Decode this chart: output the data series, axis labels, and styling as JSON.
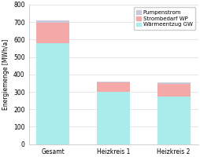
{
  "categories": [
    "Gesamt",
    "Heizkreis 1",
    "Heizkreis 2"
  ],
  "warmeentzug_gw": [
    580,
    300,
    275
  ],
  "strombedarf_wp": [
    115,
    52,
    72
  ],
  "pumpenstrom": [
    15,
    8,
    8
  ],
  "color_warmeentzug": "#aaecec",
  "color_strombedarf": "#f4a8a8",
  "color_pumpenstrom": "#c8c8d8",
  "ylabel": "Energiemenge [MWh/a]",
  "ylim": [
    0,
    800
  ],
  "yticks": [
    0,
    100,
    200,
    300,
    400,
    500,
    600,
    700,
    800
  ],
  "legend_labels": [
    "Pumpenstrom",
    "Strombedarf WP",
    "Wärmeentzug GW"
  ],
  "bar_width": 0.55,
  "axis_fontsize": 5.5,
  "legend_fontsize": 5.0,
  "tick_label_fontsize": 5.5
}
